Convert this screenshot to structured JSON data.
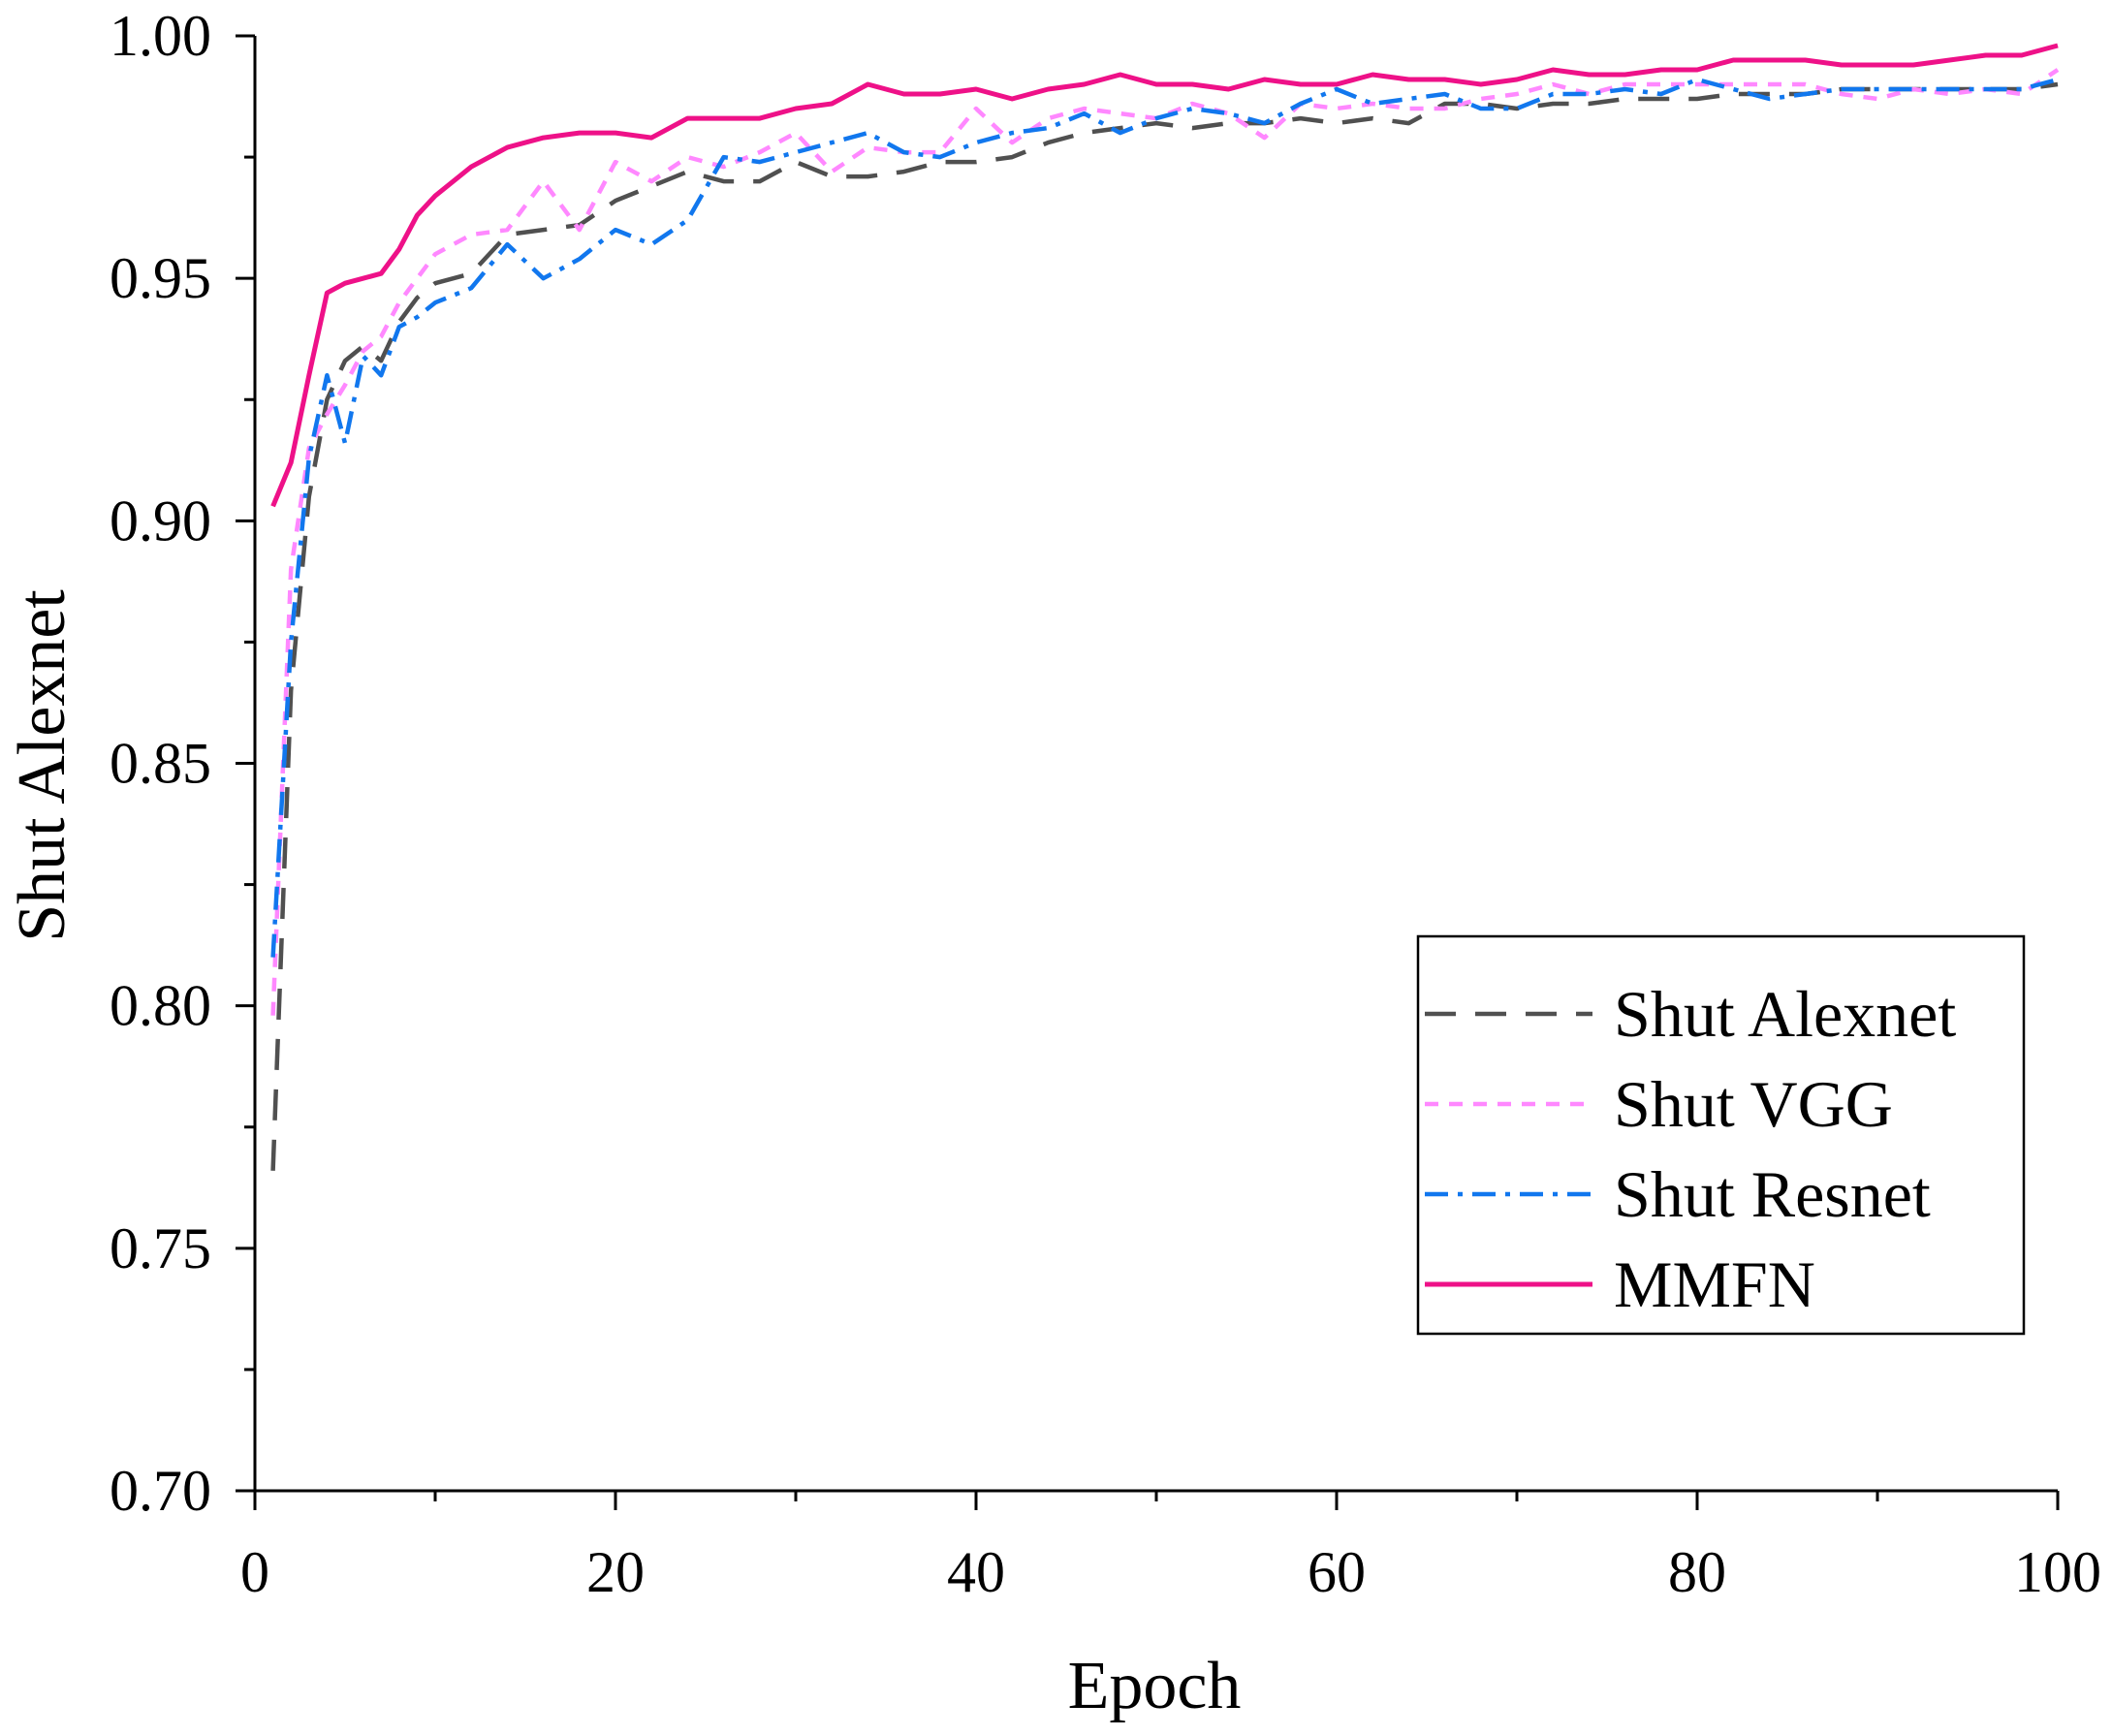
{
  "chart_data": {
    "type": "line",
    "title": "",
    "xlabel": "Epoch",
    "ylabel": "Shut Alexnet",
    "xlim": [
      0,
      100
    ],
    "ylim": [
      0.7,
      1.0
    ],
    "x_ticks": [
      "0",
      "20",
      "40",
      "60",
      "80",
      "100"
    ],
    "y_ticks": [
      "0.70",
      "0.75",
      "0.80",
      "0.85",
      "0.90",
      "0.95",
      "1.00"
    ],
    "grid": false,
    "legend_position": "center-right",
    "x": [
      1,
      2,
      3,
      4,
      5,
      6,
      7,
      8,
      9,
      10,
      12,
      14,
      16,
      18,
      20,
      22,
      24,
      26,
      28,
      30,
      32,
      34,
      36,
      38,
      40,
      42,
      44,
      46,
      48,
      50,
      52,
      54,
      56,
      58,
      60,
      62,
      64,
      66,
      68,
      70,
      72,
      74,
      76,
      78,
      80,
      82,
      84,
      86,
      88,
      90,
      92,
      94,
      96,
      98,
      100
    ],
    "series": [
      {
        "name": "Shut Alexnet",
        "color": "#505050",
        "dash": "dashed",
        "values": [
          0.766,
          0.865,
          0.905,
          0.925,
          0.933,
          0.936,
          0.933,
          0.941,
          0.946,
          0.949,
          0.951,
          0.959,
          0.96,
          0.961,
          0.966,
          0.969,
          0.972,
          0.97,
          0.97,
          0.974,
          0.971,
          0.971,
          0.972,
          0.974,
          0.974,
          0.975,
          0.978,
          0.98,
          0.981,
          0.982,
          0.981,
          0.982,
          0.982,
          0.983,
          0.982,
          0.983,
          0.982,
          0.986,
          0.986,
          0.985,
          0.986,
          0.986,
          0.987,
          0.987,
          0.987,
          0.988,
          0.988,
          0.988,
          0.989,
          0.989,
          0.989,
          0.989,
          0.989,
          0.989,
          0.99
        ]
      },
      {
        "name": "Shut VGG",
        "color": "#FF88FF",
        "dash": "short-dashed",
        "values": [
          0.798,
          0.89,
          0.915,
          0.922,
          0.928,
          0.935,
          0.938,
          0.945,
          0.95,
          0.955,
          0.959,
          0.96,
          0.97,
          0.96,
          0.974,
          0.97,
          0.975,
          0.973,
          0.976,
          0.98,
          0.972,
          0.977,
          0.976,
          0.976,
          0.985,
          0.978,
          0.983,
          0.985,
          0.984,
          0.983,
          0.986,
          0.984,
          0.979,
          0.986,
          0.985,
          0.986,
          0.985,
          0.985,
          0.987,
          0.988,
          0.99,
          0.988,
          0.99,
          0.99,
          0.99,
          0.99,
          0.99,
          0.99,
          0.988,
          0.987,
          0.989,
          0.988,
          0.989,
          0.988,
          0.993
        ]
      },
      {
        "name": "Shut Resnet",
        "color": "#1177EE",
        "dash": "dash-dot",
        "values": [
          0.81,
          0.875,
          0.913,
          0.93,
          0.916,
          0.934,
          0.93,
          0.94,
          0.942,
          0.945,
          0.948,
          0.957,
          0.95,
          0.954,
          0.96,
          0.957,
          0.962,
          0.975,
          0.974,
          0.976,
          0.978,
          0.98,
          0.976,
          0.975,
          0.978,
          0.98,
          0.981,
          0.984,
          0.98,
          0.983,
          0.985,
          0.984,
          0.982,
          0.986,
          0.989,
          0.986,
          0.987,
          0.988,
          0.985,
          0.985,
          0.988,
          0.988,
          0.989,
          0.988,
          0.991,
          0.989,
          0.987,
          0.988,
          0.989,
          0.989,
          0.989,
          0.989,
          0.989,
          0.989,
          0.991
        ]
      },
      {
        "name": "MMFN",
        "color": "#EE1188",
        "dash": "solid",
        "values": [
          0.903,
          0.912,
          0.93,
          0.947,
          0.949,
          0.95,
          0.951,
          0.956,
          0.963,
          0.967,
          0.973,
          0.977,
          0.979,
          0.98,
          0.98,
          0.979,
          0.983,
          0.983,
          0.983,
          0.985,
          0.986,
          0.99,
          0.988,
          0.988,
          0.989,
          0.987,
          0.989,
          0.99,
          0.992,
          0.99,
          0.99,
          0.989,
          0.991,
          0.99,
          0.99,
          0.992,
          0.991,
          0.991,
          0.99,
          0.991,
          0.993,
          0.992,
          0.992,
          0.993,
          0.993,
          0.995,
          0.995,
          0.995,
          0.994,
          0.994,
          0.994,
          0.995,
          0.996,
          0.996,
          0.998
        ]
      }
    ]
  }
}
